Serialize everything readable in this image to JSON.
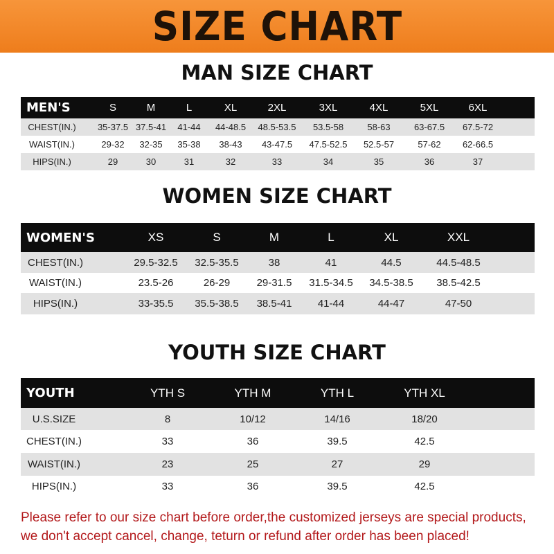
{
  "banner_title": "SIZE CHART",
  "men": {
    "title": "MAN SIZE CHART",
    "header": [
      "MEN'S",
      "S",
      "M",
      "L",
      "XL",
      "2XL",
      "3XL",
      "4XL",
      "5XL",
      "6XL"
    ],
    "rows": [
      [
        "CHEST(IN.)",
        "35-37.5",
        "37.5-41",
        "41-44",
        "44-48.5",
        "48.5-53.5",
        "53.5-58",
        "58-63",
        "63-67.5",
        "67.5-72"
      ],
      [
        "WAIST(IN.)",
        "29-32",
        "32-35",
        "35-38",
        "38-43",
        "43-47.5",
        "47.5-52.5",
        "52.5-57",
        "57-62",
        "62-66.5"
      ],
      [
        "HIPS(IN.)",
        "29",
        "30",
        "31",
        "32",
        "33",
        "34",
        "35",
        "36",
        "37"
      ]
    ]
  },
  "women": {
    "title": "WOMEN SIZE CHART",
    "header": [
      "WOMEN'S",
      "XS",
      "S",
      "M",
      "L",
      "XL",
      "XXL"
    ],
    "rows": [
      [
        "CHEST(IN.)",
        "29.5-32.5",
        "32.5-35.5",
        "38",
        "41",
        "44.5",
        "44.5-48.5"
      ],
      [
        "WAIST(IN.)",
        "23.5-26",
        "26-29",
        "29-31.5",
        "31.5-34.5",
        "34.5-38.5",
        "38.5-42.5"
      ],
      [
        "HIPS(IN.)",
        "33-35.5",
        "35.5-38.5",
        "38.5-41",
        "41-44",
        "44-47",
        "47-50"
      ]
    ]
  },
  "youth": {
    "title": "YOUTH SIZE CHART",
    "header": [
      "YOUTH",
      "YTH S",
      "YTH M",
      "YTH L",
      "YTH XL"
    ],
    "rows": [
      [
        "U.S.SIZE",
        "8",
        "10/12",
        "14/16",
        "18/20"
      ],
      [
        "CHEST(IN.)",
        "33",
        "36",
        "39.5",
        "42.5"
      ],
      [
        "WAIST(IN.)",
        "23",
        "25",
        "27",
        "29"
      ],
      [
        "HIPS(IN.)",
        "33",
        "36",
        "39.5",
        "42.5"
      ]
    ]
  },
  "notice": {
    "line1": "Please refer to our size chart before order,the customized jerseys are special products,",
    "line2": "we don't accept cancel, change, teturn or refund after order has been placed!"
  },
  "colors": {
    "banner": "#ef801f",
    "header_row": "#0d0d0d",
    "stripe": "#e2e2e2",
    "notice": "#b3191b"
  }
}
